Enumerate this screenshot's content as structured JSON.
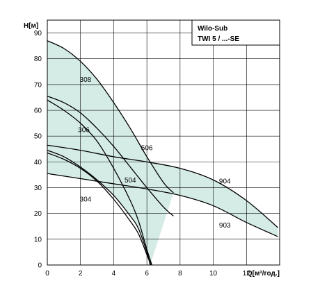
{
  "chart_data": {
    "type": "line",
    "title_lines": [
      "Wilo-Sub",
      "TWI 5 / ...-SE"
    ],
    "xlabel": "Q[м³/год.]",
    "ylabel": "H[м]",
    "xlim": [
      0,
      14
    ],
    "ylim": [
      0,
      95
    ],
    "x_ticks": [
      0,
      2,
      4,
      6,
      8,
      10,
      12
    ],
    "y_ticks": [
      0,
      10,
      20,
      30,
      40,
      50,
      60,
      70,
      80,
      90
    ],
    "grid": true,
    "colors": {
      "fill": "#d5ece6",
      "line": "#000000",
      "grid": "#000000"
    },
    "series": [
      {
        "name": "308",
        "x": [
          0,
          1,
          2,
          3,
          4,
          5,
          6,
          7,
          7.6
        ],
        "y": [
          87,
          84,
          79,
          72,
          63,
          53,
          42,
          32,
          28
        ]
      },
      {
        "name": "306",
        "x": [
          0,
          1,
          2,
          3,
          4,
          5,
          6,
          7,
          7.6
        ],
        "y": [
          65.5,
          63,
          59,
          53,
          46,
          38,
          30,
          22.5,
          19
        ]
      },
      {
        "name": "304",
        "x": [
          0,
          1,
          2,
          3,
          4,
          5,
          5.5,
          6,
          6.2
        ],
        "y": [
          44.5,
          42,
          38,
          33,
          27,
          19,
          14,
          5,
          0
        ]
      },
      {
        "name": "504",
        "x": [
          0,
          1,
          2,
          3,
          4,
          5,
          5.5,
          6,
          6.25
        ],
        "y": [
          43.5,
          41,
          37.5,
          32.5,
          25.5,
          17,
          12,
          4,
          0
        ]
      },
      {
        "name": "506",
        "x": [
          0,
          1,
          2,
          3,
          4,
          5,
          5.5,
          6,
          6.3
        ],
        "y": [
          64,
          60,
          55,
          48,
          37.5,
          25,
          17,
          6,
          0
        ]
      },
      {
        "name": "904",
        "x": [
          0,
          2,
          4,
          6,
          8,
          10,
          12,
          13.9
        ],
        "y": [
          46.5,
          44.5,
          42,
          40,
          37.5,
          33,
          25,
          14.5
        ]
      },
      {
        "name": "903",
        "x": [
          0,
          2,
          4,
          6,
          8,
          10,
          12,
          13.9
        ],
        "y": [
          35.5,
          33.5,
          31.5,
          29.5,
          27,
          23,
          16.5,
          11
        ]
      }
    ],
    "shaded_regions": [
      {
        "upper": "308",
        "lower": "304"
      },
      {
        "upper": "904",
        "lower": "903"
      }
    ],
    "annotations": [
      {
        "text": "308",
        "x": 2.3,
        "y": 72
      },
      {
        "text": "306",
        "x": 2.2,
        "y": 52.5
      },
      {
        "text": "506",
        "x": 6.0,
        "y": 45.5
      },
      {
        "text": "504",
        "x": 5.0,
        "y": 33
      },
      {
        "text": "304",
        "x": 2.3,
        "y": 25.5
      },
      {
        "text": "904",
        "x": 10.7,
        "y": 32.5
      },
      {
        "text": "903",
        "x": 10.7,
        "y": 15.5
      }
    ]
  }
}
